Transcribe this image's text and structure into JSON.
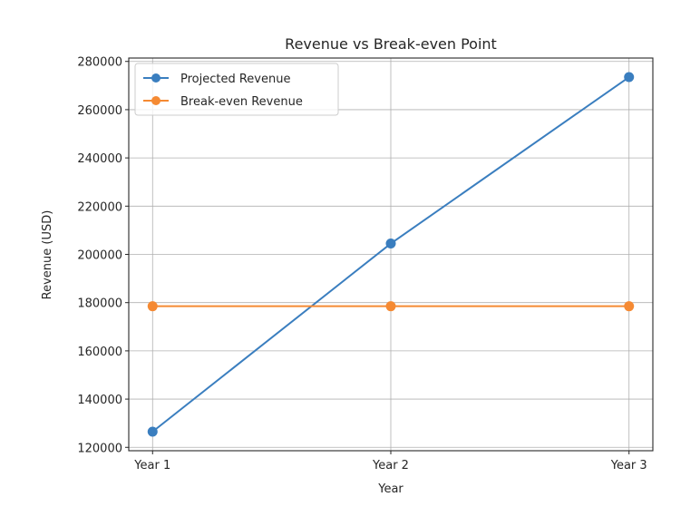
{
  "chart_data": {
    "type": "line",
    "title": "Revenue vs Break-even Point",
    "xlabel": "Year",
    "ylabel": "Revenue (USD)",
    "categories": [
      "Year 1",
      "Year 2",
      "Year 3"
    ],
    "series": [
      {
        "name": "Projected Revenue",
        "color": "#3a7ebf",
        "marker": "circle",
        "values": [
          126500,
          204500,
          273500
        ]
      },
      {
        "name": "Break-even Revenue",
        "color": "#f58a33",
        "marker": "circle",
        "values": [
          178500,
          178500,
          178500
        ]
      }
    ],
    "yticks": [
      120000,
      140000,
      160000,
      180000,
      200000,
      220000,
      240000,
      260000,
      280000
    ],
    "ylim": [
      118600,
      281400
    ],
    "grid": true,
    "legend_position": "upper left"
  }
}
